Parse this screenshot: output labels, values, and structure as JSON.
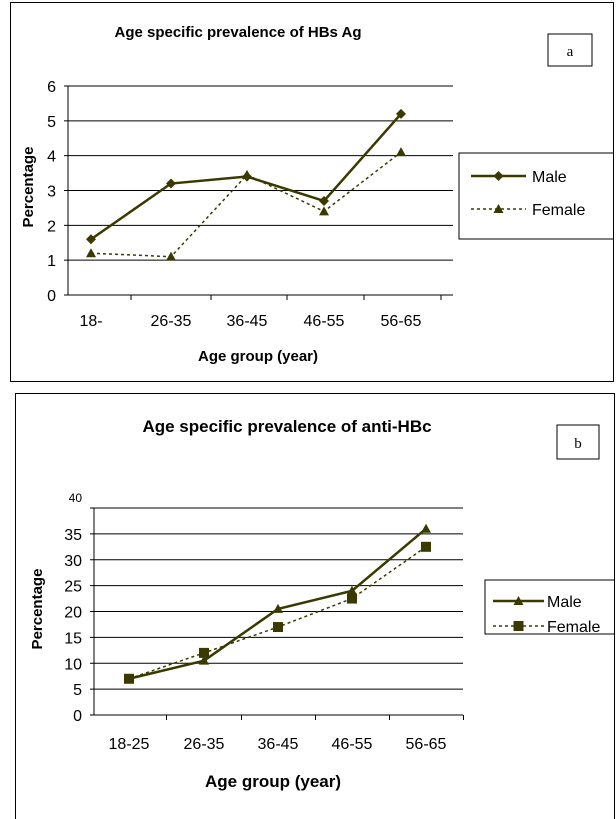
{
  "charts": [
    {
      "id": "a",
      "panel_label": "a",
      "type": "line",
      "title": "Age specific prevalence of HBs Ag",
      "xlabel": "Age group (year)",
      "ylabel": "Percentage",
      "categories": [
        "18-",
        "26-35",
        "36-45",
        "46-55",
        "56-65"
      ],
      "ylim": [
        0,
        6
      ],
      "yticks": [
        "0",
        "1",
        "2",
        "3",
        "4",
        "5",
        "6"
      ],
      "grid": true,
      "legend_position": "right",
      "series": [
        {
          "name": "Male",
          "values": [
            1.6,
            3.2,
            3.4,
            2.7,
            5.2
          ],
          "marker": "diamond",
          "line": "solid",
          "color": "#3a3a00"
        },
        {
          "name": "Female",
          "values": [
            1.2,
            1.1,
            3.45,
            2.4,
            4.1
          ],
          "marker": "triangle",
          "line": "dotted",
          "color": "#3a3a00"
        }
      ]
    },
    {
      "id": "b",
      "panel_label": "b",
      "type": "line",
      "title": "Age specific prevalence of anti-HBc",
      "xlabel": "Age group (year)",
      "ylabel": "Percentage",
      "categories": [
        "18-25",
        "26-35",
        "36-45",
        "46-55",
        "56-65"
      ],
      "ylim": [
        0,
        40
      ],
      "yticks": [
        "0",
        "5",
        "10",
        "15",
        "20",
        "25",
        "30",
        "35",
        "40"
      ],
      "grid": true,
      "legend_position": "right",
      "series": [
        {
          "name": "Male",
          "values": [
            7,
            10.5,
            20.5,
            24,
            36
          ],
          "marker": "triangle",
          "line": "solid",
          "color": "#3a3a00"
        },
        {
          "name": "Female",
          "values": [
            7,
            12,
            17,
            22.5,
            32.5
          ],
          "marker": "square",
          "line": "dotted",
          "color": "#3a3a00"
        }
      ]
    }
  ]
}
